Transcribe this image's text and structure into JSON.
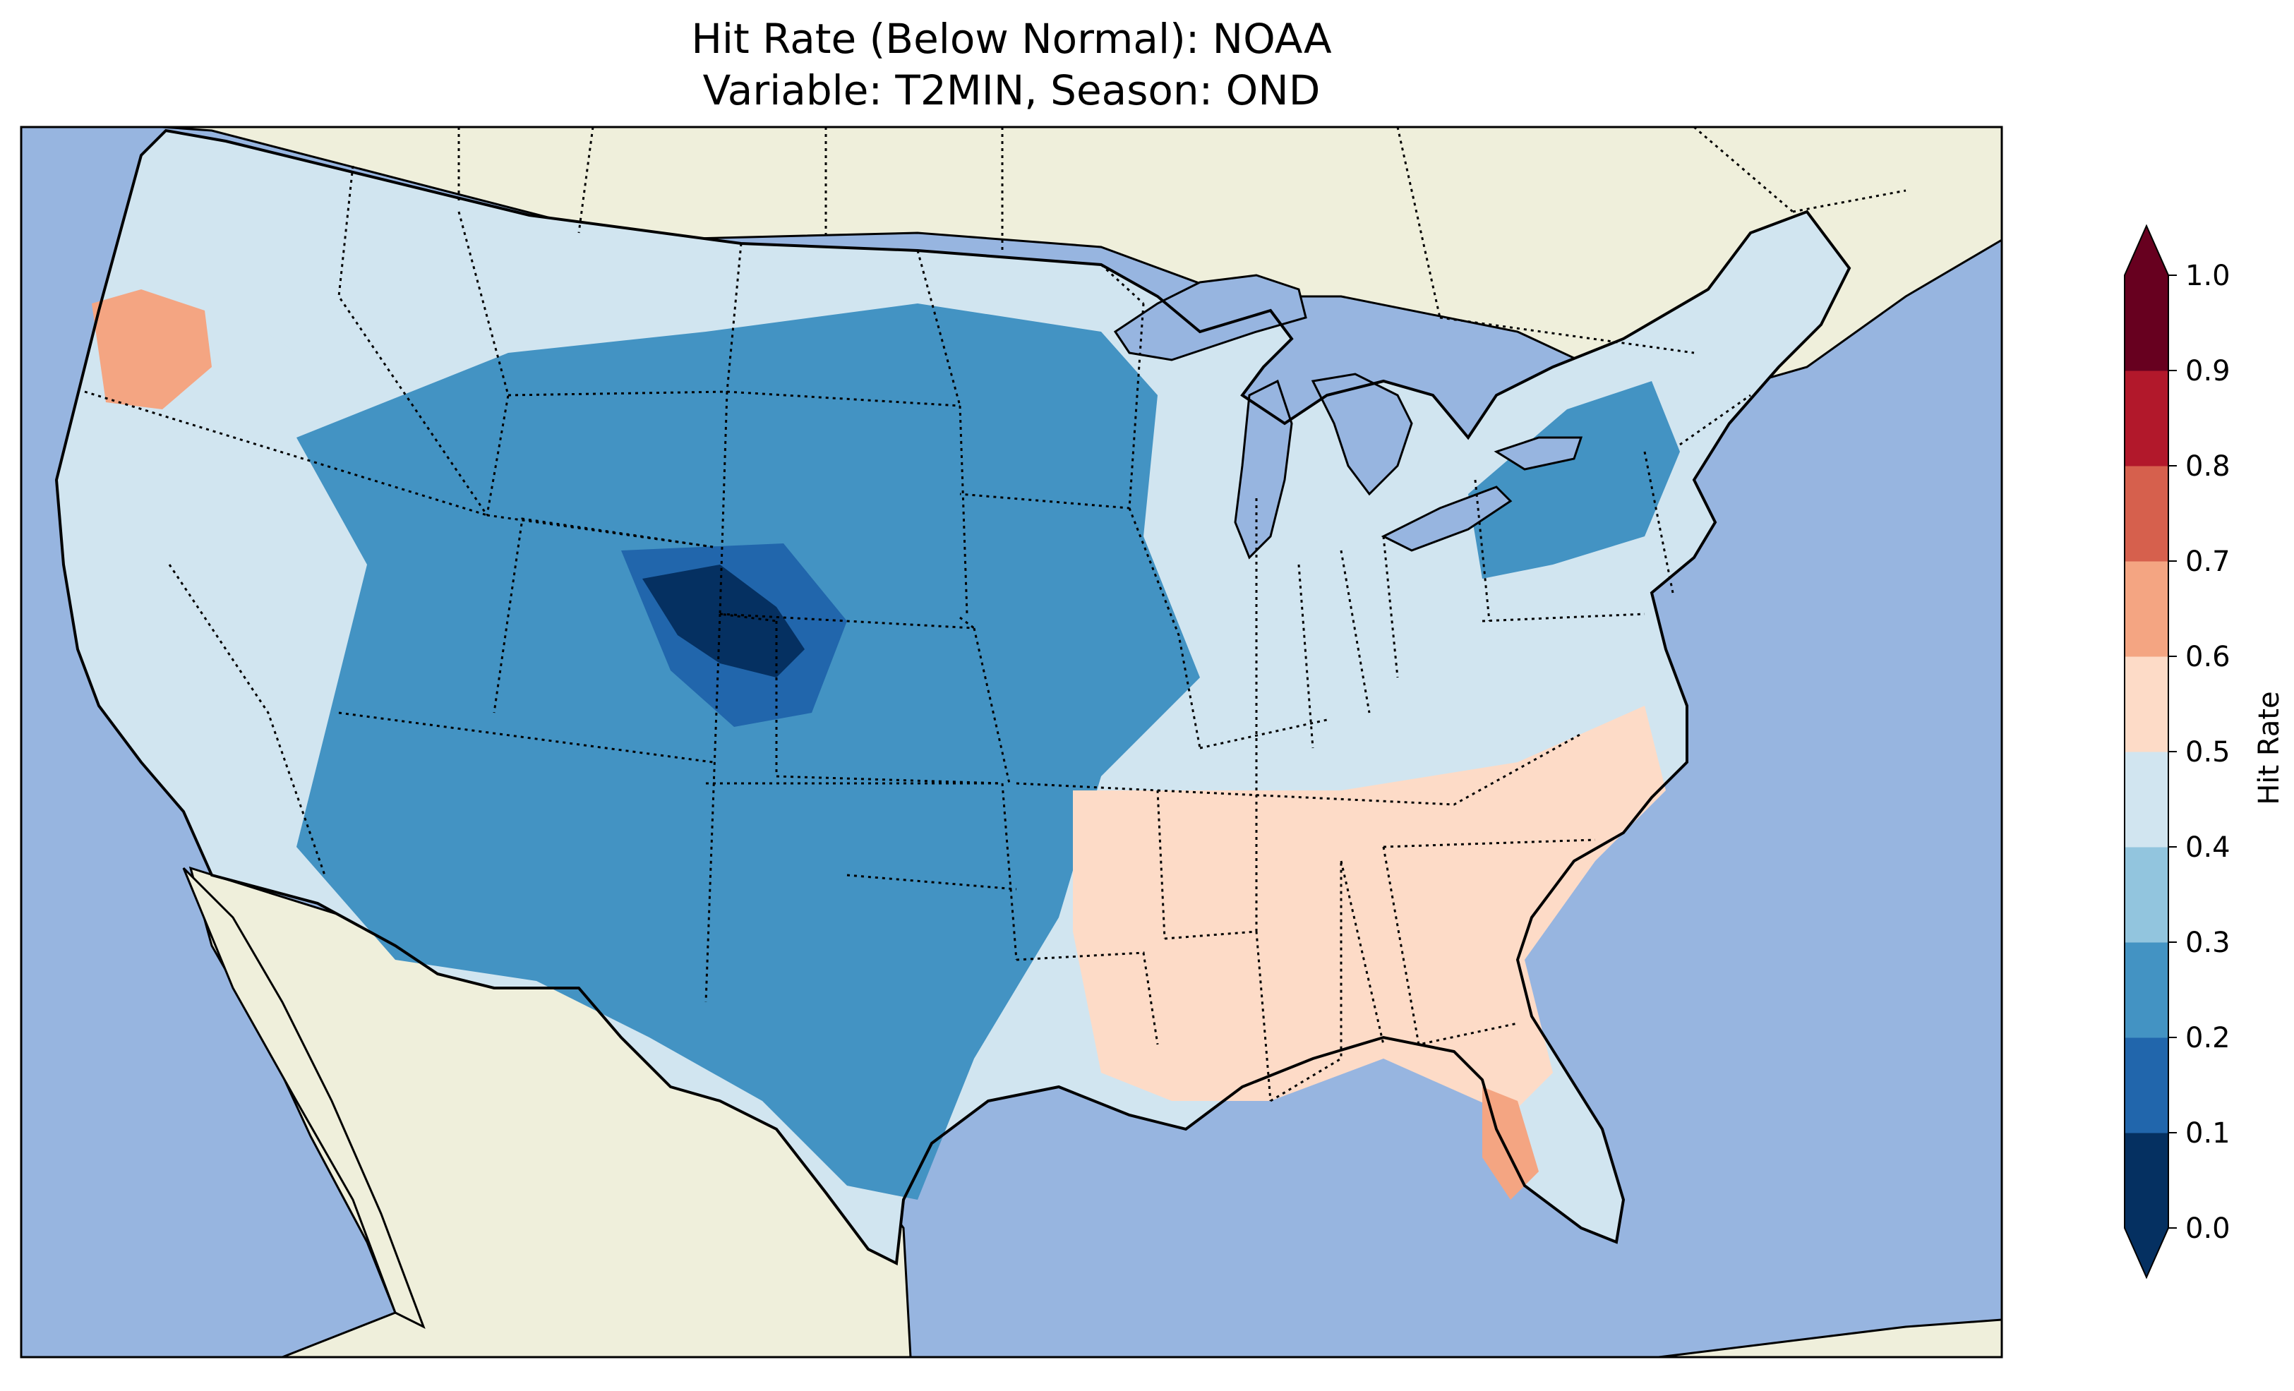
{
  "title": {
    "line1": "Hit Rate (Below Normal): NOAA",
    "line2": "Variable: T2MIN, Season: OND"
  },
  "colors": {
    "ocean": "#97b5e0",
    "land": "#efefdb",
    "border": "#000000"
  },
  "colorbar": {
    "label": "Hit Rate",
    "ticks": [
      "0.0",
      "0.1",
      "0.2",
      "0.3",
      "0.4",
      "0.5",
      "0.6",
      "0.7",
      "0.8",
      "0.9",
      "1.0"
    ],
    "colors": [
      "#053061",
      "#2166ac",
      "#4393c3",
      "#92c5de",
      "#d1e5f0",
      "#fddbc7",
      "#f4a582",
      "#d6604d",
      "#b2182b",
      "#67001f"
    ],
    "extend": "both"
  },
  "map_regions": [
    {
      "name": "west-coast-light",
      "level": 4
    },
    {
      "name": "oregon-salmon",
      "level": 6
    },
    {
      "name": "intermountain-blue",
      "level": 2
    },
    {
      "name": "colorado-wyoming-darkest",
      "level": 0
    },
    {
      "name": "southeast-pale-peach",
      "level": 5
    },
    {
      "name": "florida-salmon",
      "level": 6
    },
    {
      "name": "northeast-blue",
      "level": 2
    }
  ]
}
